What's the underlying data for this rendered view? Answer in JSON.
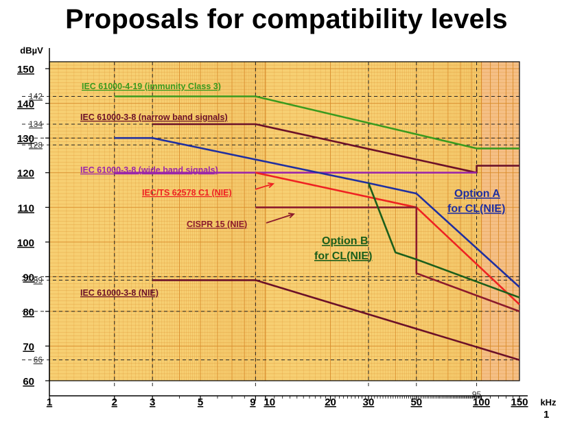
{
  "title": "Proposals for compatibility levels",
  "page_number": "1",
  "chart_data": {
    "type": "line",
    "x_scale": "log",
    "x_unit": "kHz",
    "y_unit": "dBµV",
    "xlim": [
      1,
      150
    ],
    "ylim": [
      60,
      152
    ],
    "x_ticks": [
      1,
      2,
      3,
      5,
      9,
      10,
      20,
      30,
      50,
      100,
      150
    ],
    "y_ticks": [
      60,
      70,
      80,
      90,
      100,
      110,
      120,
      130,
      140,
      150
    ],
    "y_ref_lines": [
      {
        "value": 142,
        "label": "142"
      },
      {
        "value": 134,
        "label": "134"
      },
      {
        "value": 130,
        "label": ""
      },
      {
        "value": 128,
        "label": "128"
      },
      {
        "value": 89,
        "label": "89"
      },
      {
        "value": 90,
        "label": ""
      },
      {
        "value": 80,
        "label": ""
      },
      {
        "value": 66,
        "label": "66"
      }
    ],
    "x_ref_lines": [
      {
        "value": 2,
        "label": ""
      },
      {
        "value": 3,
        "label": ""
      },
      {
        "value": 9,
        "label": ""
      },
      {
        "value": 30,
        "label": ""
      },
      {
        "value": 50,
        "label": ""
      },
      {
        "value": 95,
        "label": "95"
      }
    ],
    "series": [
      {
        "name": "IEC 61000-4-19 (immunity Class 3)",
        "color": "#3a9a1e",
        "points": [
          [
            2,
            142
          ],
          [
            9,
            142
          ],
          [
            95,
            127
          ],
          [
            150,
            127
          ]
        ]
      },
      {
        "name": "IEC 61000-3-8 (narrow band signals)",
        "color": "#6b1028",
        "points": [
          [
            3,
            134
          ],
          [
            9,
            134
          ],
          [
            95,
            120
          ],
          [
            95,
            122
          ],
          [
            150,
            122
          ]
        ]
      },
      {
        "name": "IEC 61000-3-8 (wide band signals)",
        "color": "#9b27a8",
        "points": [
          [
            2,
            120
          ],
          [
            95,
            120
          ]
        ]
      },
      {
        "name": "IEC/TS 62578 C1 (NIE)",
        "color": "#ee2222",
        "points": [
          [
            9,
            120
          ],
          [
            50,
            110
          ],
          [
            150,
            82
          ]
        ]
      },
      {
        "name": "CISPR 15 (NIE)",
        "color": "#8b1a2c",
        "points": [
          [
            9,
            110
          ],
          [
            50,
            110
          ],
          [
            50,
            91
          ],
          [
            150,
            80
          ]
        ]
      },
      {
        "name": "IEC 61000-3-8 (NIE)",
        "color": "#6b1028",
        "points": [
          [
            3,
            89
          ],
          [
            9,
            89
          ],
          [
            150,
            66
          ]
        ]
      },
      {
        "name": "Option A for CL(NIE)",
        "color": "#1f2fa0",
        "points": [
          [
            2,
            130
          ],
          [
            3,
            130
          ],
          [
            30,
            117
          ],
          [
            50,
            114
          ],
          [
            150,
            87
          ]
        ]
      },
      {
        "name": "Option B for CL(NIE)",
        "color": "#1b5e1b",
        "points": [
          [
            30,
            117
          ],
          [
            40,
            97
          ],
          [
            50,
            95
          ],
          [
            150,
            84
          ]
        ]
      }
    ],
    "annotations": [
      {
        "text": "IEC 61000-4-19 (immunity Class 3)",
        "color": "#3a9a1e"
      },
      {
        "text": "IEC 61000-3-8 (narrow band signals)",
        "color": "#6b1028"
      },
      {
        "text": "IEC 61000-3-8 (wide band signals)",
        "color": "#9b27a8"
      },
      {
        "text": "IEC/TS 62578 C1 (NIE)",
        "color": "#ee2222"
      },
      {
        "text": "CISPR 15 (NIE)",
        "color": "#8b1a2c"
      },
      {
        "text": "IEC 61000-3-8 (NIE)",
        "color": "#6b1028"
      },
      {
        "text": "Option A",
        "color": "#1f2fa0"
      },
      {
        "text": "for CL(NIE)",
        "color": "#1f2fa0"
      },
      {
        "text": "Option B",
        "color": "#1b5e1b"
      },
      {
        "text": "for CL(NIE)",
        "color": "#1b5e1b"
      }
    ],
    "grid": true,
    "background_color": "#f7cf72",
    "grid_color": "#d98b2b"
  }
}
